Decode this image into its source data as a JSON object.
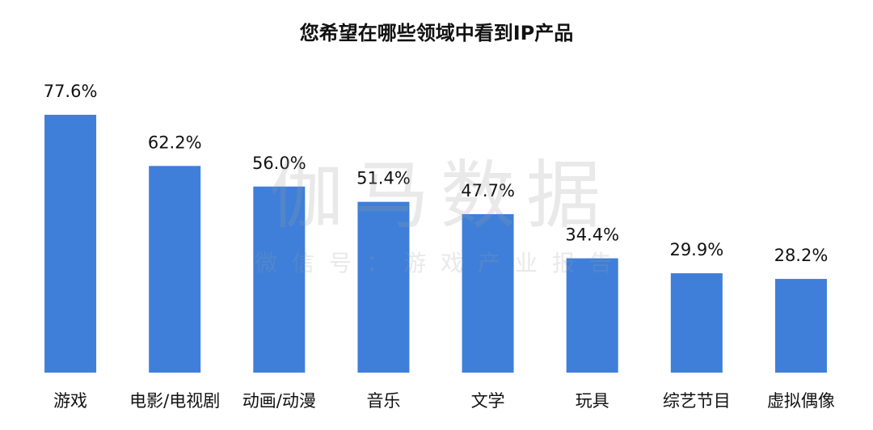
{
  "chart_data": {
    "type": "bar",
    "title": "您希望在哪些领域中看到IP产品",
    "categories": [
      "游戏",
      "电影/电视剧",
      "动画/动漫",
      "音乐",
      "文学",
      "玩具",
      "综艺节目",
      "虚拟偶像"
    ],
    "values": [
      77.6,
      62.2,
      56.0,
      51.4,
      47.7,
      34.4,
      29.9,
      28.2
    ],
    "value_labels": [
      "77.6%",
      "62.2%",
      "56.0%",
      "51.4%",
      "47.7%",
      "34.4%",
      "29.9%",
      "28.2%"
    ],
    "color": "#3f7fd9",
    "watermark": "伽马数据",
    "watermark_subtitle": "微信号：游戏产业报告"
  }
}
